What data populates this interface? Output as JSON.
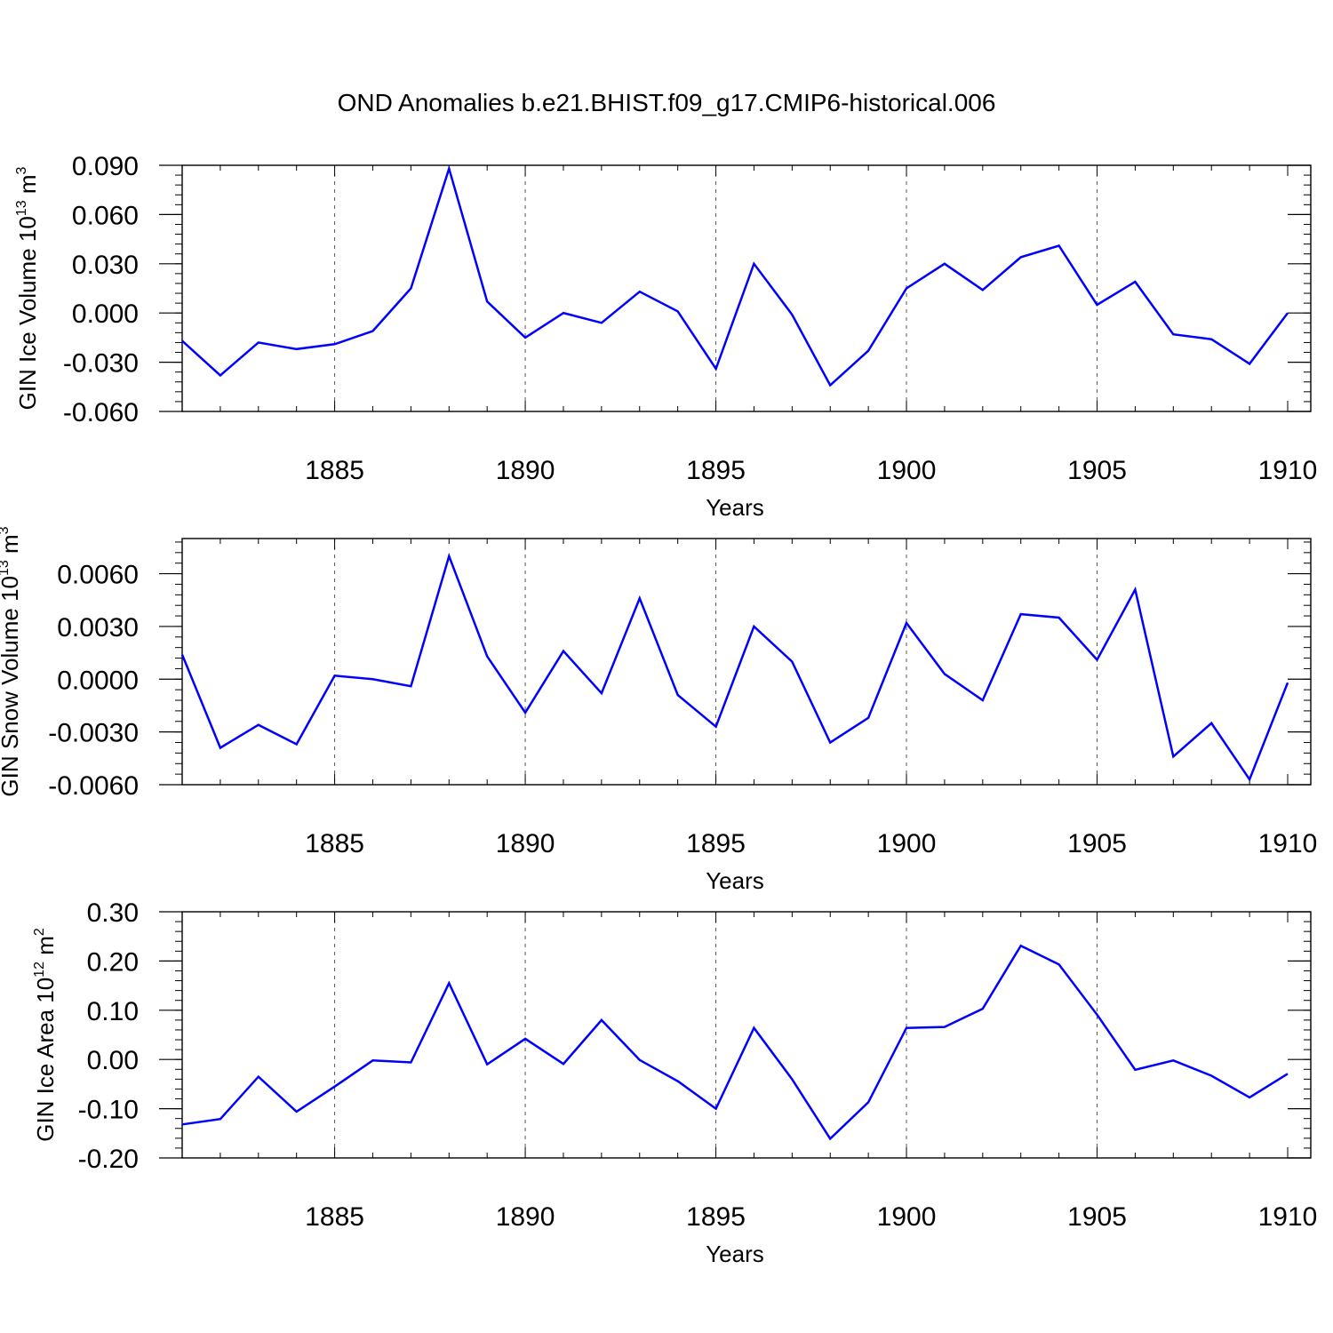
{
  "title": "OND Anomalies b.e21.BHIST.f09_g17.CMIP6-historical.006",
  "line_color": "#0000ff",
  "chart_data": [
    {
      "type": "line",
      "title": "OND Anomalies b.e21.BHIST.f09_g17.CMIP6-historical.006",
      "ylabel": {
        "main": "GIN Ice Volume 10",
        "exp": "13",
        "unit": " m",
        "unit_exp": "3"
      },
      "xlabel": "Years",
      "xlim": [
        1881,
        1910
      ],
      "ylim": [
        -0.06,
        0.09
      ],
      "xticks": [
        1885,
        1890,
        1895,
        1900,
        1905,
        1910
      ],
      "xtick_labels": [
        "1885",
        "1890",
        "1895",
        "1900",
        "1905",
        "1910"
      ],
      "yticks": [
        -0.06,
        -0.03,
        0.0,
        0.03,
        0.06,
        0.09
      ],
      "ytick_labels": [
        "-0.060",
        "-0.030",
        "0.000",
        "0.030",
        "0.060",
        "0.090"
      ],
      "x": [
        1881,
        1882,
        1883,
        1884,
        1885,
        1886,
        1887,
        1888,
        1889,
        1890,
        1891,
        1892,
        1893,
        1894,
        1895,
        1896,
        1897,
        1898,
        1899,
        1900,
        1901,
        1902,
        1903,
        1904,
        1905,
        1906,
        1907,
        1908,
        1909,
        1910
      ],
      "values": [
        -0.017,
        -0.038,
        -0.018,
        -0.022,
        -0.019,
        -0.011,
        0.015,
        0.088,
        0.007,
        -0.015,
        0.0,
        -0.006,
        0.013,
        0.001,
        -0.034,
        0.03,
        -0.001,
        -0.044,
        -0.023,
        0.015,
        0.03,
        0.014,
        0.034,
        0.041,
        0.005,
        0.019,
        -0.013,
        -0.016,
        -0.031,
        0.0
      ]
    },
    {
      "type": "line",
      "ylabel": {
        "main": "GIN Snow Volume 10",
        "exp": "13",
        "unit": " m",
        "unit_exp": "3"
      },
      "xlabel": "Years",
      "xlim": [
        1881,
        1910
      ],
      "ylim": [
        -0.006,
        0.008
      ],
      "xticks": [
        1885,
        1890,
        1895,
        1900,
        1905,
        1910
      ],
      "xtick_labels": [
        "1885",
        "1890",
        "1895",
        "1900",
        "1905",
        "1910"
      ],
      "yticks": [
        -0.006,
        -0.003,
        0.0,
        0.003,
        0.006
      ],
      "ytick_labels": [
        "-0.0060",
        "-0.0030",
        "0.0000",
        "0.0030",
        "0.0060"
      ],
      "x": [
        1881,
        1882,
        1883,
        1884,
        1885,
        1886,
        1887,
        1888,
        1889,
        1890,
        1891,
        1892,
        1893,
        1894,
        1895,
        1896,
        1897,
        1898,
        1899,
        1900,
        1901,
        1902,
        1903,
        1904,
        1905,
        1906,
        1907,
        1908,
        1909,
        1910
      ],
      "values": [
        0.0014,
        -0.0039,
        -0.0026,
        -0.0037,
        0.0002,
        0.0,
        -0.0004,
        0.007,
        0.0013,
        -0.0019,
        0.0016,
        -0.0008,
        0.0046,
        -0.0009,
        -0.0027,
        0.003,
        0.001,
        -0.0036,
        -0.0022,
        0.0032,
        0.0003,
        -0.0012,
        0.0037,
        0.0035,
        0.0011,
        0.0051,
        -0.0044,
        -0.0025,
        -0.0057,
        -0.0002
      ]
    },
    {
      "type": "line",
      "ylabel": {
        "main": "GIN Ice Area 10",
        "exp": "12",
        "unit": " m",
        "unit_exp": "2"
      },
      "xlabel": "Years",
      "xlim": [
        1881,
        1910
      ],
      "ylim": [
        -0.2,
        0.3
      ],
      "xticks": [
        1885,
        1890,
        1895,
        1900,
        1905,
        1910
      ],
      "xtick_labels": [
        "1885",
        "1890",
        "1895",
        "1900",
        "1905",
        "1910"
      ],
      "yticks": [
        -0.2,
        -0.1,
        0.0,
        0.1,
        0.2,
        0.3
      ],
      "ytick_labels": [
        "-0.20",
        "-0.10",
        "0.00",
        "0.10",
        "0.20",
        "0.30"
      ],
      "x": [
        1881,
        1882,
        1883,
        1884,
        1885,
        1886,
        1887,
        1888,
        1889,
        1890,
        1891,
        1892,
        1893,
        1894,
        1895,
        1896,
        1897,
        1898,
        1899,
        1900,
        1901,
        1902,
        1903,
        1904,
        1905,
        1906,
        1907,
        1908,
        1909,
        1910
      ],
      "values": [
        -0.132,
        -0.121,
        -0.035,
        -0.106,
        -0.055,
        -0.002,
        -0.006,
        0.155,
        -0.01,
        0.042,
        -0.009,
        0.08,
        -0.001,
        -0.044,
        -0.1,
        0.064,
        -0.04,
        -0.161,
        -0.087,
        0.064,
        0.066,
        0.103,
        0.231,
        0.193,
        0.091,
        -0.021,
        -0.002,
        -0.033,
        -0.077,
        -0.029
      ]
    }
  ]
}
